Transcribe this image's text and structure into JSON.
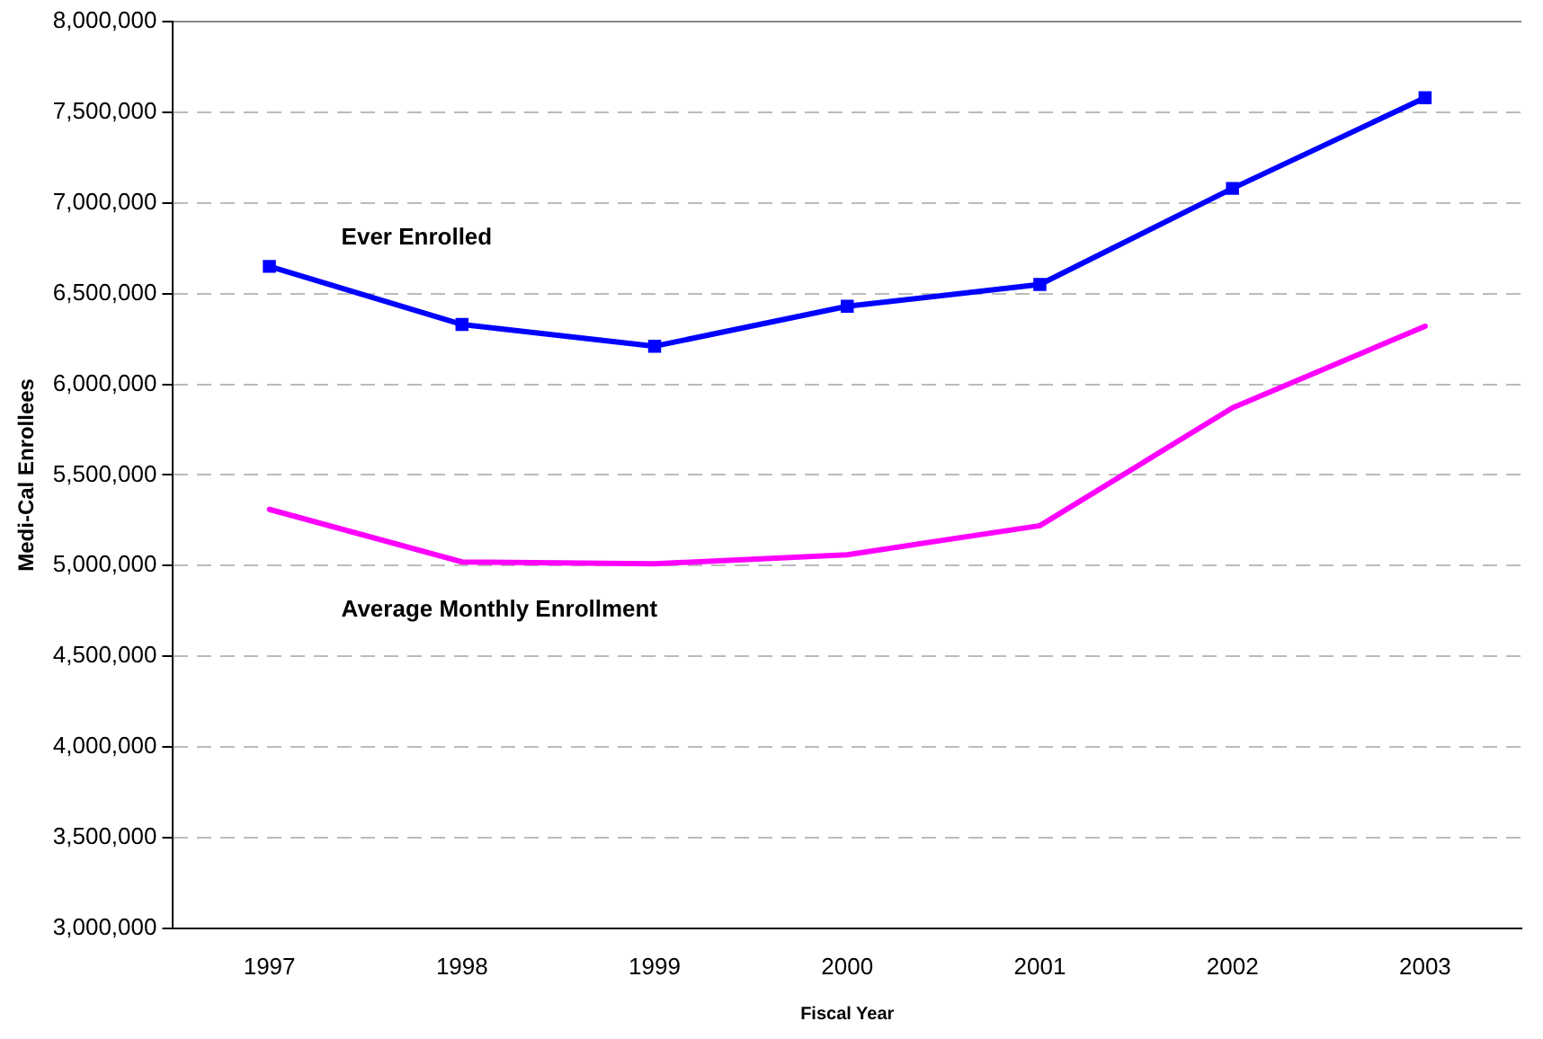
{
  "chart_data": {
    "type": "line",
    "xlabel": "Fiscal Year",
    "ylabel": "Medi-Cal Enrollees",
    "categories": [
      "1997",
      "1998",
      "1999",
      "2000",
      "2001",
      "2002",
      "2003"
    ],
    "series": [
      {
        "name": "Ever Enrolled",
        "color": "#0000ff",
        "marker": "square",
        "values": [
          6650000,
          6330000,
          6210000,
          6430000,
          6550000,
          7080000,
          7580000
        ]
      },
      {
        "name": "Average Monthly Enrollment",
        "color": "#ff00ff",
        "marker": "none",
        "values": [
          5310000,
          5020000,
          5010000,
          5060000,
          5220000,
          5870000,
          6320000
        ]
      }
    ],
    "ylim": [
      3000000,
      8000000
    ],
    "yticks": [
      {
        "value": 3000000,
        "label": "3,000,000"
      },
      {
        "value": 3500000,
        "label": "3,500,000"
      },
      {
        "value": 4000000,
        "label": "4,000,000"
      },
      {
        "value": 4500000,
        "label": "4,500,000"
      },
      {
        "value": 5000000,
        "label": "5,000,000"
      },
      {
        "value": 5500000,
        "label": "5,500,000"
      },
      {
        "value": 6000000,
        "label": "6,000,000"
      },
      {
        "value": 6500000,
        "label": "6,500,000"
      },
      {
        "value": 7000000,
        "label": "7,000,000"
      },
      {
        "value": 7500000,
        "label": "7,500,000"
      },
      {
        "value": 8000000,
        "label": "8,000,000"
      }
    ],
    "grid": "y",
    "legend": false,
    "line_style": "solid"
  }
}
